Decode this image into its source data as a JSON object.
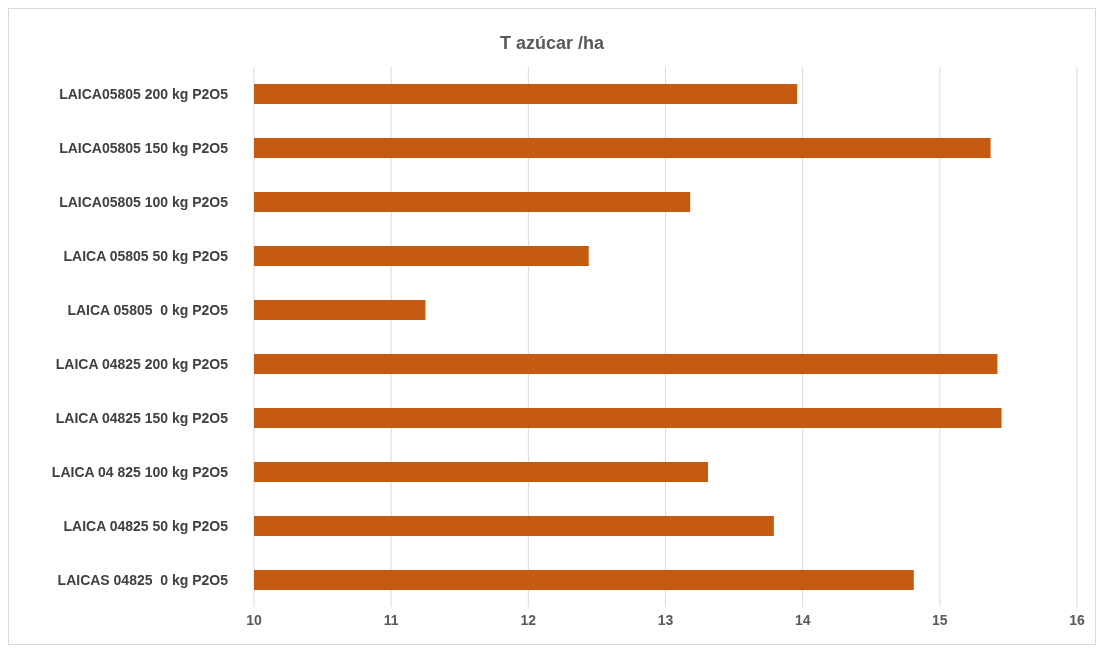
{
  "chart_data": {
    "type": "bar",
    "orientation": "horizontal",
    "title": "T azúcar /ha",
    "categories": [
      "LAICA05805 200 kg P2O5",
      "LAICA05805 150 kg P2O5",
      "LAICA05805 100 kg P2O5",
      "LAICA 05805 50 kg P2O5",
      "LAICA 05805  0 kg P2O5",
      "LAICA 04825 200 kg P2O5",
      "LAICA 04825 150 kg P2O5",
      "LAICA 04 825 100 kg P2O5",
      "LAICA 04825 50 kg P2O5",
      "LAICAS 04825  0 kg P2O5"
    ],
    "values": [
      13.96,
      15.37,
      13.18,
      12.44,
      11.25,
      15.42,
      15.45,
      13.31,
      13.79,
      14.81
    ],
    "color": "#c55a11",
    "xlim": [
      10,
      16
    ],
    "xticks": [
      10,
      11,
      12,
      13,
      14,
      15,
      16
    ],
    "grid": "x"
  }
}
